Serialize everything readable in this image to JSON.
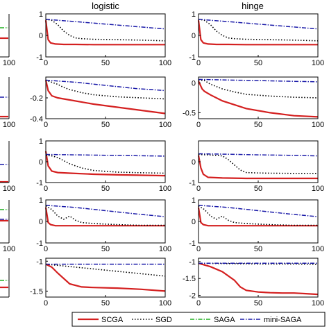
{
  "colors": {
    "SCGA": "#d42020",
    "SGD": "#000000",
    "SAGA": "#20b020",
    "mini-SAGA": "#1a1aa8"
  },
  "legend": {
    "placement": "bottom",
    "entries": [
      "SCGA",
      "SGD",
      "SAGA",
      "mini-SAGA"
    ],
    "styles": [
      "solid",
      "dotted",
      "dashdot",
      "dashdot"
    ]
  },
  "columns": [
    {
      "title": ""
    },
    {
      "title": "logistic"
    },
    {
      "title": "hinge"
    }
  ],
  "chart_data": [
    {
      "type": "line",
      "panel": "logistic-row1",
      "xlim": [
        0,
        100
      ],
      "ylim": [
        -1,
        1
      ],
      "xticks": [
        "0",
        "50",
        "100"
      ],
      "yticks": [
        "1",
        "0",
        "-1"
      ],
      "series": [
        {
          "name": "SCGA",
          "x": [
            0,
            2,
            4,
            8,
            15,
            25,
            40,
            60,
            80,
            100
          ],
          "values": [
            0.7,
            -0.2,
            -0.35,
            -0.4,
            -0.42,
            -0.42,
            -0.43,
            -0.43,
            -0.43,
            -0.43
          ]
        },
        {
          "name": "SGD",
          "x": [
            0,
            5,
            10,
            15,
            20,
            25,
            30,
            40,
            60,
            80,
            100
          ],
          "values": [
            0.75,
            0.7,
            0.5,
            0.2,
            0.0,
            -0.12,
            -0.15,
            -0.18,
            -0.2,
            -0.22,
            -0.25
          ]
        },
        {
          "name": "mini-SAGA",
          "x": [
            0,
            20,
            40,
            60,
            80,
            100
          ],
          "values": [
            0.75,
            0.66,
            0.57,
            0.48,
            0.39,
            0.3
          ]
        }
      ]
    },
    {
      "type": "line",
      "panel": "hinge-row1",
      "xlim": [
        0,
        100
      ],
      "ylim": [
        -1,
        1
      ],
      "xticks": [
        "0",
        "50",
        "100"
      ],
      "yticks": [
        "1",
        "0",
        "-1"
      ],
      "series": [
        {
          "name": "SCGA",
          "x": [
            0,
            2,
            4,
            8,
            15,
            25,
            40,
            60,
            80,
            100
          ],
          "values": [
            0.7,
            -0.2,
            -0.35,
            -0.4,
            -0.42,
            -0.42,
            -0.43,
            -0.43,
            -0.43,
            -0.43
          ]
        },
        {
          "name": "SGD",
          "x": [
            0,
            5,
            10,
            15,
            20,
            25,
            30,
            40,
            60,
            80,
            100
          ],
          "values": [
            0.75,
            0.7,
            0.5,
            0.2,
            0.0,
            -0.12,
            -0.15,
            -0.18,
            -0.2,
            -0.22,
            -0.25
          ]
        },
        {
          "name": "mini-SAGA",
          "x": [
            0,
            20,
            40,
            60,
            80,
            100
          ],
          "values": [
            0.75,
            0.66,
            0.57,
            0.48,
            0.39,
            0.3
          ]
        }
      ]
    },
    {
      "type": "line",
      "panel": "logistic-row2",
      "xlim": [
        0,
        100
      ],
      "ylim": [
        -0.4,
        0
      ],
      "xticks": [
        "0",
        "50",
        "100"
      ],
      "yticks": [
        "-0.2",
        "-0.4"
      ],
      "series": [
        {
          "name": "SCGA",
          "x": [
            0,
            2,
            5,
            10,
            20,
            40,
            60,
            80,
            100
          ],
          "values": [
            -0.03,
            -0.13,
            -0.18,
            -0.2,
            -0.22,
            -0.26,
            -0.29,
            -0.32,
            -0.35
          ]
        },
        {
          "name": "SGD",
          "x": [
            0,
            5,
            10,
            15,
            20,
            30,
            40,
            60,
            80,
            100
          ],
          "values": [
            -0.03,
            -0.05,
            -0.07,
            -0.1,
            -0.12,
            -0.15,
            -0.17,
            -0.19,
            -0.2,
            -0.21
          ]
        },
        {
          "name": "mini-SAGA",
          "x": [
            0,
            25,
            50,
            75,
            100
          ],
          "values": [
            -0.03,
            -0.05,
            -0.08,
            -0.11,
            -0.13
          ]
        }
      ]
    },
    {
      "type": "line",
      "panel": "hinge-row2",
      "xlim": [
        0,
        100
      ],
      "ylim": [
        -0.6,
        0.1
      ],
      "xticks": [
        "0",
        "50",
        "100"
      ],
      "yticks": [
        "0",
        "-0.5"
      ],
      "series": [
        {
          "name": "SCGA",
          "x": [
            0,
            3,
            5,
            10,
            20,
            40,
            60,
            80,
            100
          ],
          "values": [
            0.03,
            -0.1,
            -0.14,
            -0.2,
            -0.3,
            -0.43,
            -0.5,
            -0.55,
            -0.57
          ]
        },
        {
          "name": "SGD",
          "x": [
            0,
            5,
            10,
            20,
            30,
            40,
            60,
            80,
            100
          ],
          "values": [
            0.05,
            0.04,
            -0.02,
            -0.1,
            -0.15,
            -0.19,
            -0.22,
            -0.24,
            -0.25
          ]
        },
        {
          "name": "mini-SAGA",
          "x": [
            0,
            25,
            50,
            75,
            100
          ],
          "values": [
            0.06,
            0.05,
            0.04,
            0.03,
            0.02
          ]
        }
      ]
    },
    {
      "type": "line",
      "panel": "logistic-row3",
      "xlim": [
        0,
        100
      ],
      "ylim": [
        -1,
        1
      ],
      "xticks": [
        "0",
        "50",
        "100"
      ],
      "yticks": [
        "1",
        "0",
        "-1"
      ],
      "series": [
        {
          "name": "SCGA",
          "x": [
            0,
            2,
            5,
            10,
            20,
            40,
            60,
            80,
            100
          ],
          "values": [
            0.5,
            -0.2,
            -0.45,
            -0.52,
            -0.55,
            -0.6,
            -0.63,
            -0.65,
            -0.67
          ]
        },
        {
          "name": "SGD",
          "x": [
            0,
            5,
            10,
            15,
            20,
            30,
            40,
            60,
            80,
            100
          ],
          "values": [
            0.3,
            0.28,
            0.2,
            0.05,
            -0.1,
            -0.3,
            -0.42,
            -0.5,
            -0.53,
            -0.55
          ]
        },
        {
          "name": "mini-SAGA",
          "x": [
            0,
            25,
            50,
            75,
            100
          ],
          "values": [
            0.35,
            0.33,
            0.31,
            0.29,
            0.27
          ]
        }
      ]
    },
    {
      "type": "line",
      "panel": "hinge-row3",
      "xlim": [
        0,
        100
      ],
      "ylim": [
        -1,
        1
      ],
      "xticks": [
        "0",
        "50",
        "100"
      ],
      "yticks": [
        "0",
        "-1"
      ],
      "series": [
        {
          "name": "SCGA",
          "x": [
            0,
            2,
            4,
            8,
            20,
            40,
            60,
            80,
            100
          ],
          "values": [
            0.3,
            -0.3,
            -0.6,
            -0.75,
            -0.78,
            -0.8,
            -0.8,
            -0.8,
            -0.8
          ]
        },
        {
          "name": "SGD",
          "x": [
            0,
            10,
            20,
            25,
            30,
            35,
            40,
            50,
            60,
            80,
            100
          ],
          "values": [
            0.35,
            0.32,
            0.28,
            0.1,
            -0.15,
            -0.4,
            -0.52,
            -0.54,
            -0.55,
            -0.56,
            -0.56
          ]
        },
        {
          "name": "mini-SAGA",
          "x": [
            0,
            25,
            50,
            75,
            100
          ],
          "values": [
            0.38,
            0.36,
            0.33,
            0.31,
            0.28
          ]
        }
      ]
    },
    {
      "type": "line",
      "panel": "logistic-row4",
      "xlim": [
        0,
        100
      ],
      "ylim": [
        -1,
        1
      ],
      "xticks": [
        "0",
        "50",
        "100"
      ],
      "yticks": [
        "1",
        "0",
        "-1"
      ],
      "series": [
        {
          "name": "SCGA",
          "x": [
            0,
            2,
            4,
            8,
            20,
            40,
            60,
            80,
            100
          ],
          "values": [
            0.65,
            -0.05,
            -0.15,
            -0.2,
            -0.2,
            -0.2,
            -0.2,
            -0.2,
            -0.2
          ]
        },
        {
          "name": "SGD",
          "x": [
            0,
            5,
            10,
            15,
            20,
            25,
            30,
            40,
            60,
            80,
            100
          ],
          "values": [
            0.72,
            0.55,
            0.25,
            0.1,
            0.25,
            0.05,
            -0.05,
            -0.1,
            -0.15,
            -0.18,
            -0.18
          ]
        },
        {
          "name": "mini-SAGA",
          "x": [
            0,
            25,
            50,
            75,
            100
          ],
          "values": [
            0.75,
            0.65,
            0.5,
            0.35,
            0.22
          ]
        }
      ]
    },
    {
      "type": "line",
      "panel": "hinge-row4",
      "xlim": [
        0,
        100
      ],
      "ylim": [
        -1,
        1
      ],
      "xticks": [
        "0",
        "50",
        "100"
      ],
      "yticks": [
        "1",
        "0",
        "-1"
      ],
      "series": [
        {
          "name": "SCGA",
          "x": [
            0,
            2,
            4,
            8,
            20,
            40,
            60,
            80,
            100
          ],
          "values": [
            0.65,
            -0.05,
            -0.15,
            -0.2,
            -0.2,
            -0.2,
            -0.2,
            -0.2,
            -0.2
          ]
        },
        {
          "name": "SGD",
          "x": [
            0,
            5,
            10,
            15,
            20,
            25,
            30,
            40,
            60,
            80,
            100
          ],
          "values": [
            0.72,
            0.55,
            0.25,
            0.1,
            0.25,
            0.05,
            -0.05,
            -0.1,
            -0.15,
            -0.18,
            -0.18
          ]
        },
        {
          "name": "mini-SAGA",
          "x": [
            0,
            25,
            50,
            75,
            100
          ],
          "values": [
            0.75,
            0.65,
            0.5,
            0.35,
            0.22
          ]
        }
      ]
    },
    {
      "type": "line",
      "panel": "logistic-row5",
      "xlim": [
        0,
        100
      ],
      "ylim": [
        -1.6,
        -0.95
      ],
      "xticks": [
        "0",
        "50",
        "100"
      ],
      "yticks": [
        "-1",
        "-1.5"
      ],
      "series": [
        {
          "name": "SCGA",
          "x": [
            0,
            5,
            10,
            20,
            30,
            40,
            60,
            80,
            100
          ],
          "values": [
            -1.05,
            -1.1,
            -1.2,
            -1.38,
            -1.43,
            -1.44,
            -1.45,
            -1.47,
            -1.5
          ]
        },
        {
          "name": "SGD",
          "x": [
            0,
            25,
            50,
            75,
            100
          ],
          "values": [
            -1.05,
            -1.1,
            -1.15,
            -1.2,
            -1.25
          ]
        },
        {
          "name": "mini-SAGA",
          "x": [
            0,
            25,
            50,
            75,
            100
          ],
          "values": [
            -1.05,
            -1.05,
            -1.05,
            -1.05,
            -1.05
          ]
        }
      ]
    },
    {
      "type": "line",
      "panel": "hinge-row5",
      "xlim": [
        0,
        100
      ],
      "ylim": [
        -2.05,
        -0.9
      ],
      "xticks": [
        "0",
        "50",
        "100"
      ],
      "yticks": [
        "-1",
        "-1.5",
        "-2"
      ],
      "series": [
        {
          "name": "SCGA",
          "x": [
            0,
            10,
            20,
            30,
            35,
            40,
            50,
            60,
            70,
            80,
            90,
            100
          ],
          "values": [
            -1.05,
            -1.15,
            -1.3,
            -1.55,
            -1.75,
            -1.85,
            -1.9,
            -1.92,
            -1.93,
            -1.93,
            -1.95,
            -1.97
          ]
        },
        {
          "name": "SGD",
          "x": [
            0,
            25,
            50,
            75,
            100
          ],
          "values": [
            -1.05,
            -1.06,
            -1.07,
            -1.07,
            -1.08
          ]
        },
        {
          "name": "mini-SAGA",
          "x": [
            0,
            25,
            50,
            75,
            100
          ],
          "values": [
            -1.05,
            -1.05,
            -1.05,
            -1.05,
            -1.05
          ]
        }
      ]
    }
  ],
  "partial_column": {
    "xticks": [
      "100",
      "100",
      "100",
      "100"
    ]
  }
}
